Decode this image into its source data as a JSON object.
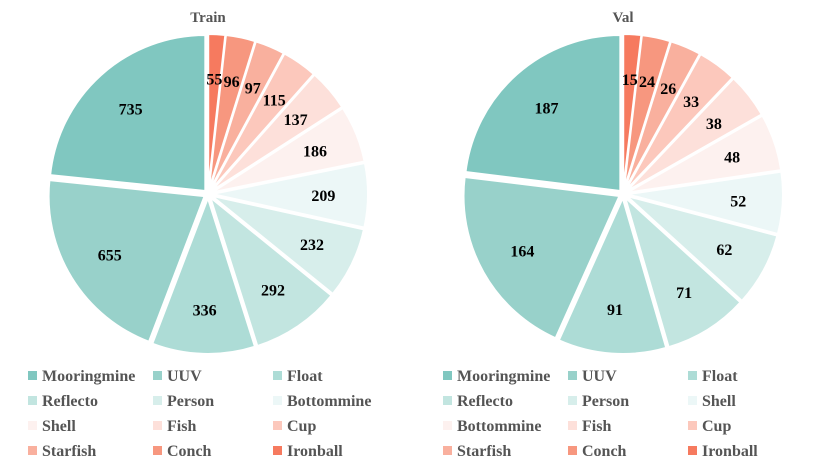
{
  "chart_data": [
    {
      "type": "pie",
      "title": "Train",
      "categories": [
        "Mooringmine",
        "UUV",
        "Float",
        "Reflecto",
        "Person",
        "Bottommine",
        "Shell",
        "Fish",
        "Cup",
        "Starfish",
        "Conch",
        "Ironball"
      ],
      "values": [
        735,
        655,
        336,
        292,
        232,
        209,
        186,
        137,
        115,
        97,
        96,
        55
      ],
      "colors": [
        "#80c7c0",
        "#98d1ca",
        "#addcd6",
        "#c2e5e0",
        "#d7eeeb",
        "#ecf7f7",
        "#fdf1ef",
        "#fde0da",
        "#fcc8bc",
        "#f9b09e",
        "#f7977f",
        "#f67a5f"
      ],
      "start": "12 o'clock, counter-clockwise",
      "legend": [
        "Mooringmine",
        "UUV",
        "Float",
        "Reflecto",
        "Person",
        "Bottommine",
        "Shell",
        "Fish",
        "Cup",
        "Starfish",
        "Conch",
        "Ironball"
      ],
      "legend_position": "bottom"
    },
    {
      "type": "pie",
      "title": "Val",
      "categories": [
        "Mooringmine",
        "UUV",
        "Float",
        "Reflecto",
        "Person",
        "Shell",
        "Bottommine",
        "Fish",
        "Cup",
        "Starfish",
        "Conch",
        "Ironball"
      ],
      "values": [
        187,
        164,
        91,
        71,
        62,
        52,
        48,
        38,
        33,
        26,
        24,
        15
      ],
      "colors": [
        "#80c7c0",
        "#98d1ca",
        "#addcd6",
        "#c2e5e0",
        "#d7eeeb",
        "#ecf7f7",
        "#fdf1ef",
        "#fde0da",
        "#fcc8bc",
        "#f9b09e",
        "#f7977f",
        "#f67a5f"
      ],
      "start": "12 o'clock, counter-clockwise",
      "legend": [
        "Mooringmine",
        "UUV",
        "Float",
        "Reflecto",
        "Person",
        "Shell",
        "Bottommine",
        "Fish",
        "Cup",
        "Starfish",
        "Conch",
        "Ironball"
      ],
      "legend_position": "bottom"
    }
  ]
}
